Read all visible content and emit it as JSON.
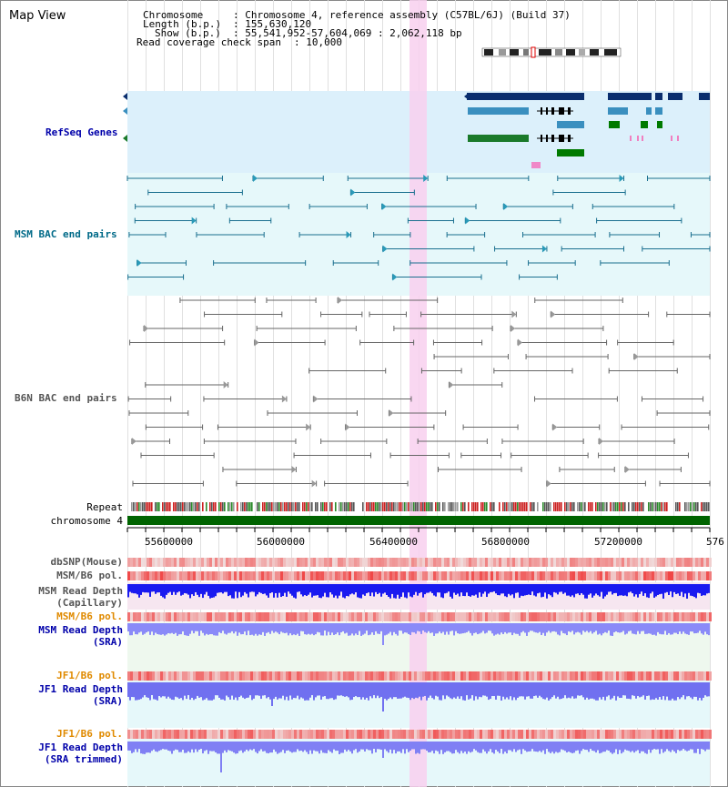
{
  "header": {
    "title": "Map View",
    "chromosome_label": "Chromosome",
    "chromosome_value": ": Chromosome 4, reference assembly (C57BL/6J) (Build 37)",
    "length_label": "Length (b.p.)",
    "length_value": ": 155,630,120",
    "show_label": "Show (b.p.)",
    "show_value": ": 55,541,952-57,604,069 : 2,062,118 bp",
    "coverage_label": "Read coverage check span",
    "coverage_value": ": 10,000"
  },
  "tracks": {
    "refseq": "RefSeq Genes",
    "msm_bac": "MSM BAC end pairs",
    "b6n_bac": "B6N BAC end pairs",
    "repeat": "Repeat",
    "chromosome": "chromosome 4",
    "dbsnp": "dbSNP(Mouse)",
    "msm_b6_pol": "MSM/B6 pol.",
    "msm_depth_cap_1": "MSM Read Depth",
    "msm_depth_cap_2": "(Capillary)",
    "msm_b6_pol_2": "MSM/B6 pol.",
    "msm_depth_sra_1": "MSM Read Depth",
    "msm_depth_sra_2": "(SRA)",
    "jf1_b6_pol": "JF1/B6 pol.",
    "jf1_depth_sra_1": "JF1 Read Depth",
    "jf1_depth_sra_2": "(SRA)",
    "jf1_b6_pol_2": "JF1/B6 pol.",
    "jf1_depth_trim_1": "JF1 Read Depth",
    "jf1_depth_trim_2": "(SRA trimmed)"
  },
  "axis": {
    "ticks": [
      "55600000",
      "56000000",
      "56400000",
      "56800000",
      "57200000",
      "576"
    ]
  },
  "colors": {
    "refseq_label": "#0000aa",
    "msm_bac_label": "#006a88",
    "orange_label": "#e08a00",
    "blue_label": "#0000aa",
    "highlight": "#f8d0ee",
    "refseq_bg": "#dcf0fb",
    "bac_bg": "#e6f8fa",
    "chromosome_bar": "#006400"
  }
}
